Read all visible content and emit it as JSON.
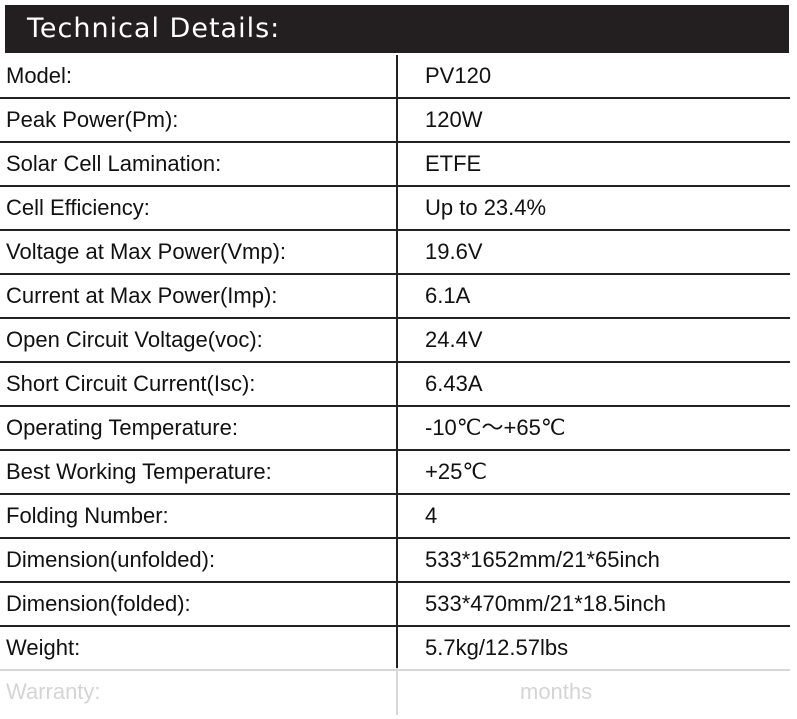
{
  "header": {
    "title": "Technical Details:"
  },
  "table": {
    "rows": [
      [
        "Model:",
        "PV120"
      ],
      [
        "Peak Power(Pm):",
        "120W"
      ],
      [
        "Solar Cell Lamination:",
        "ETFE"
      ],
      [
        "Cell Efficiency:",
        "Up to 23.4%"
      ],
      [
        "Voltage at Max Power(Vmp):",
        "19.6V"
      ],
      [
        "Current at Max Power(Imp):",
        "6.1A"
      ],
      [
        "Open Circuit Voltage(voc):",
        "24.4V"
      ],
      [
        "Short Circuit Current(Isc):",
        "6.43A"
      ],
      [
        "Operating Temperature:",
        "-10℃～+65℃"
      ],
      [
        "Best Working Temperature:",
        "+25℃"
      ],
      [
        "Folding Number:",
        "4"
      ],
      [
        "Dimension(unfolded):",
        "533*1652mm/21*65inch"
      ],
      [
        "Dimension(folded):",
        "533*470mm/21*18.5inch"
      ],
      [
        "Weight:",
        "5.7kg/12.57lbs"
      ],
      [
        "Warranty:",
        "months"
      ]
    ]
  }
}
